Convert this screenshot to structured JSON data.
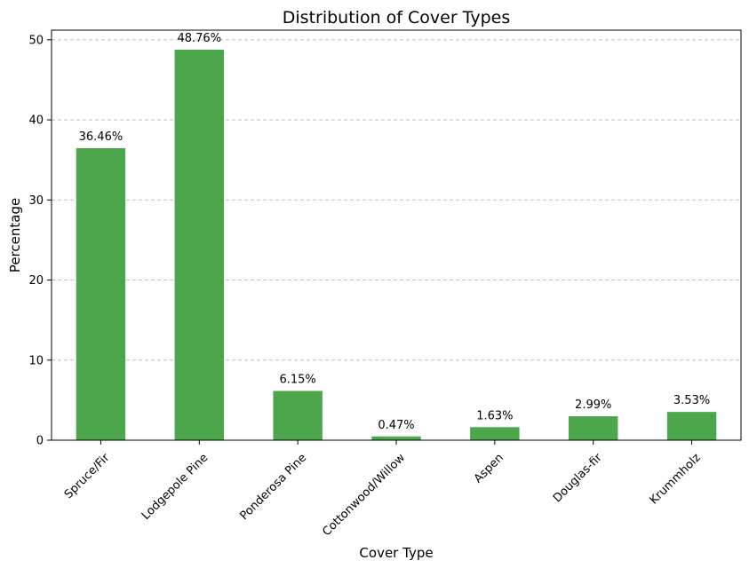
{
  "chart_data": {
    "type": "bar",
    "title": "Distribution of Cover Types",
    "xlabel": "Cover Type",
    "ylabel": "Percentage",
    "categories": [
      "Spruce/Fir",
      "Lodgepole Pine",
      "Ponderosa Pine",
      "Cottonwood/Willow",
      "Aspen",
      "Douglas-fir",
      "Krummholz"
    ],
    "values": [
      36.46,
      48.76,
      6.15,
      0.47,
      1.63,
      2.99,
      3.53
    ],
    "data_labels": [
      "36.46%",
      "48.76%",
      "6.15%",
      "0.47%",
      "1.63%",
      "2.99%",
      "3.53%"
    ],
    "ylim": [
      0,
      51.2
    ],
    "yticks": [
      0,
      10,
      20,
      30,
      40,
      50
    ],
    "grid": "y-dashed",
    "bar_color": "#4ca64c",
    "legend": "none"
  }
}
